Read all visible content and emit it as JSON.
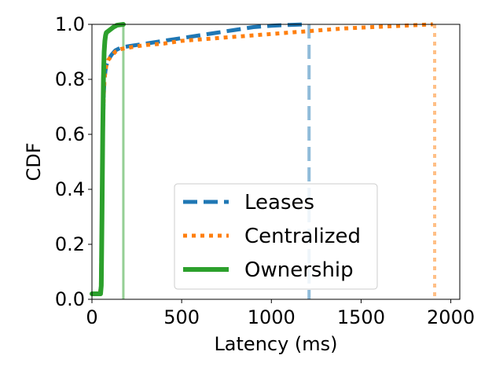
{
  "chart_data": {
    "type": "line",
    "xlabel": "Latency (ms)",
    "ylabel": "CDF",
    "xlim": [
      0,
      2050
    ],
    "ylim": [
      0,
      1.0
    ],
    "x_ticks": [
      0,
      500,
      1000,
      1500,
      2000
    ],
    "y_ticks": [
      0.0,
      0.2,
      0.4,
      0.6,
      0.8,
      1.0
    ],
    "x_tick_labels": [
      "0",
      "500",
      "1000",
      "1500",
      "2000"
    ],
    "y_tick_labels": [
      "0.0",
      "0.2",
      "0.4",
      "0.6",
      "0.8",
      "1.0"
    ],
    "grid": false,
    "legend_position": "lower-center",
    "series": [
      {
        "name": "Leases",
        "color": "#1f77b4",
        "style": "dashed",
        "x": [
          0,
          45,
          50,
          55,
          58,
          62,
          66,
          70,
          75,
          80,
          90,
          110,
          130,
          160,
          200,
          300,
          400,
          500,
          600,
          700,
          800,
          900,
          1000,
          1100,
          1200
        ],
        "y": [
          0.02,
          0.02,
          0.05,
          0.25,
          0.5,
          0.65,
          0.75,
          0.8,
          0.83,
          0.85,
          0.87,
          0.89,
          0.905,
          0.915,
          0.92,
          0.93,
          0.94,
          0.95,
          0.96,
          0.97,
          0.98,
          0.99,
          0.995,
          0.998,
          1.0
        ],
        "marker_line_x": 1210
      },
      {
        "name": "Centralized",
        "color": "#ff7f0e",
        "style": "dotted",
        "x": [
          0,
          45,
          50,
          55,
          58,
          62,
          66,
          70,
          75,
          80,
          90,
          110,
          130,
          160,
          200,
          300,
          400,
          500,
          600,
          700,
          800,
          900,
          1000,
          1100,
          1200,
          1300,
          1400,
          1500,
          1600,
          1700,
          1800,
          1900
        ],
        "y": [
          0.02,
          0.02,
          0.05,
          0.25,
          0.5,
          0.65,
          0.75,
          0.8,
          0.83,
          0.85,
          0.87,
          0.885,
          0.9,
          0.91,
          0.915,
          0.925,
          0.93,
          0.94,
          0.945,
          0.95,
          0.955,
          0.96,
          0.965,
          0.97,
          0.975,
          0.98,
          0.985,
          0.988,
          0.991,
          0.994,
          0.997,
          1.0
        ],
        "marker_line_x": 1910
      },
      {
        "name": "Ownership",
        "color": "#2ca02c",
        "style": "solid",
        "x": [
          0,
          48,
          52,
          56,
          60,
          64,
          68,
          72,
          76,
          80,
          90,
          100,
          120,
          140,
          175
        ],
        "y": [
          0.02,
          0.02,
          0.05,
          0.3,
          0.6,
          0.8,
          0.9,
          0.94,
          0.96,
          0.97,
          0.975,
          0.98,
          0.99,
          0.997,
          1.0
        ],
        "marker_line_x": 175
      }
    ]
  }
}
